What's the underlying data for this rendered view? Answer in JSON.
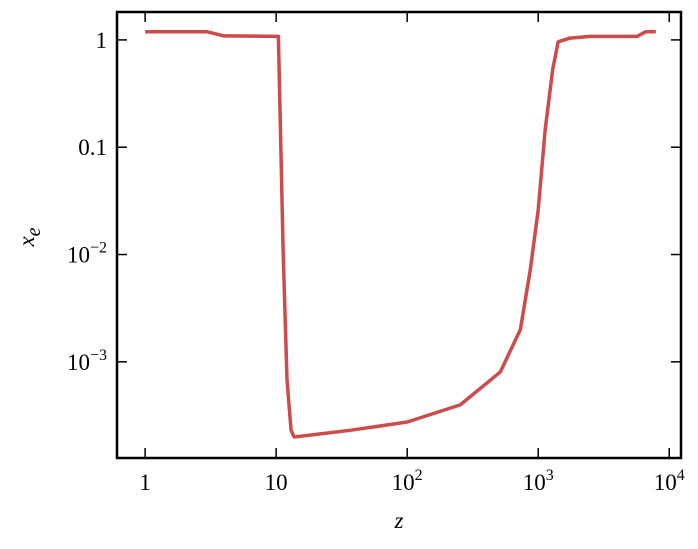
{
  "chart_data": {
    "type": "line",
    "x_label": "z",
    "y_label": "xe",
    "log_x": true,
    "log_y": true,
    "xlim": [
      0.61,
      12300
    ],
    "ylim": [
      0.000127,
      1.82
    ],
    "xticks": [
      1,
      10,
      {
        "value": 100,
        "label": "102"
      },
      {
        "value": 1000,
        "label": "103"
      },
      {
        "value": 10000,
        "label": "104"
      }
    ],
    "yticks": [
      1,
      0.1,
      {
        "value": 0.01,
        "label": "10−2"
      },
      {
        "value": 0.001,
        "label": "10−3"
      }
    ],
    "series": [
      {
        "color": "#cd4b4b",
        "x": [
          1,
          2.97,
          4,
          10.4,
          11.3,
          12.1,
          13,
          13.7,
          14,
          36.7,
          100,
          254,
          514,
          731,
          870,
          1000,
          1130,
          1290,
          1420,
          1750,
          2500,
          5700,
          6600,
          7900
        ],
        "values": [
          1.19,
          1.19,
          1.09,
          1.08,
          0.011,
          0.00068,
          0.00023,
          0.0002,
          0.0002,
          0.00023,
          0.000275,
          0.000397,
          0.000805,
          0.002,
          0.0072,
          0.026,
          0.145,
          0.53,
          0.96,
          1.04,
          1.08,
          1.08,
          1.19,
          1.19
        ]
      }
    ]
  }
}
